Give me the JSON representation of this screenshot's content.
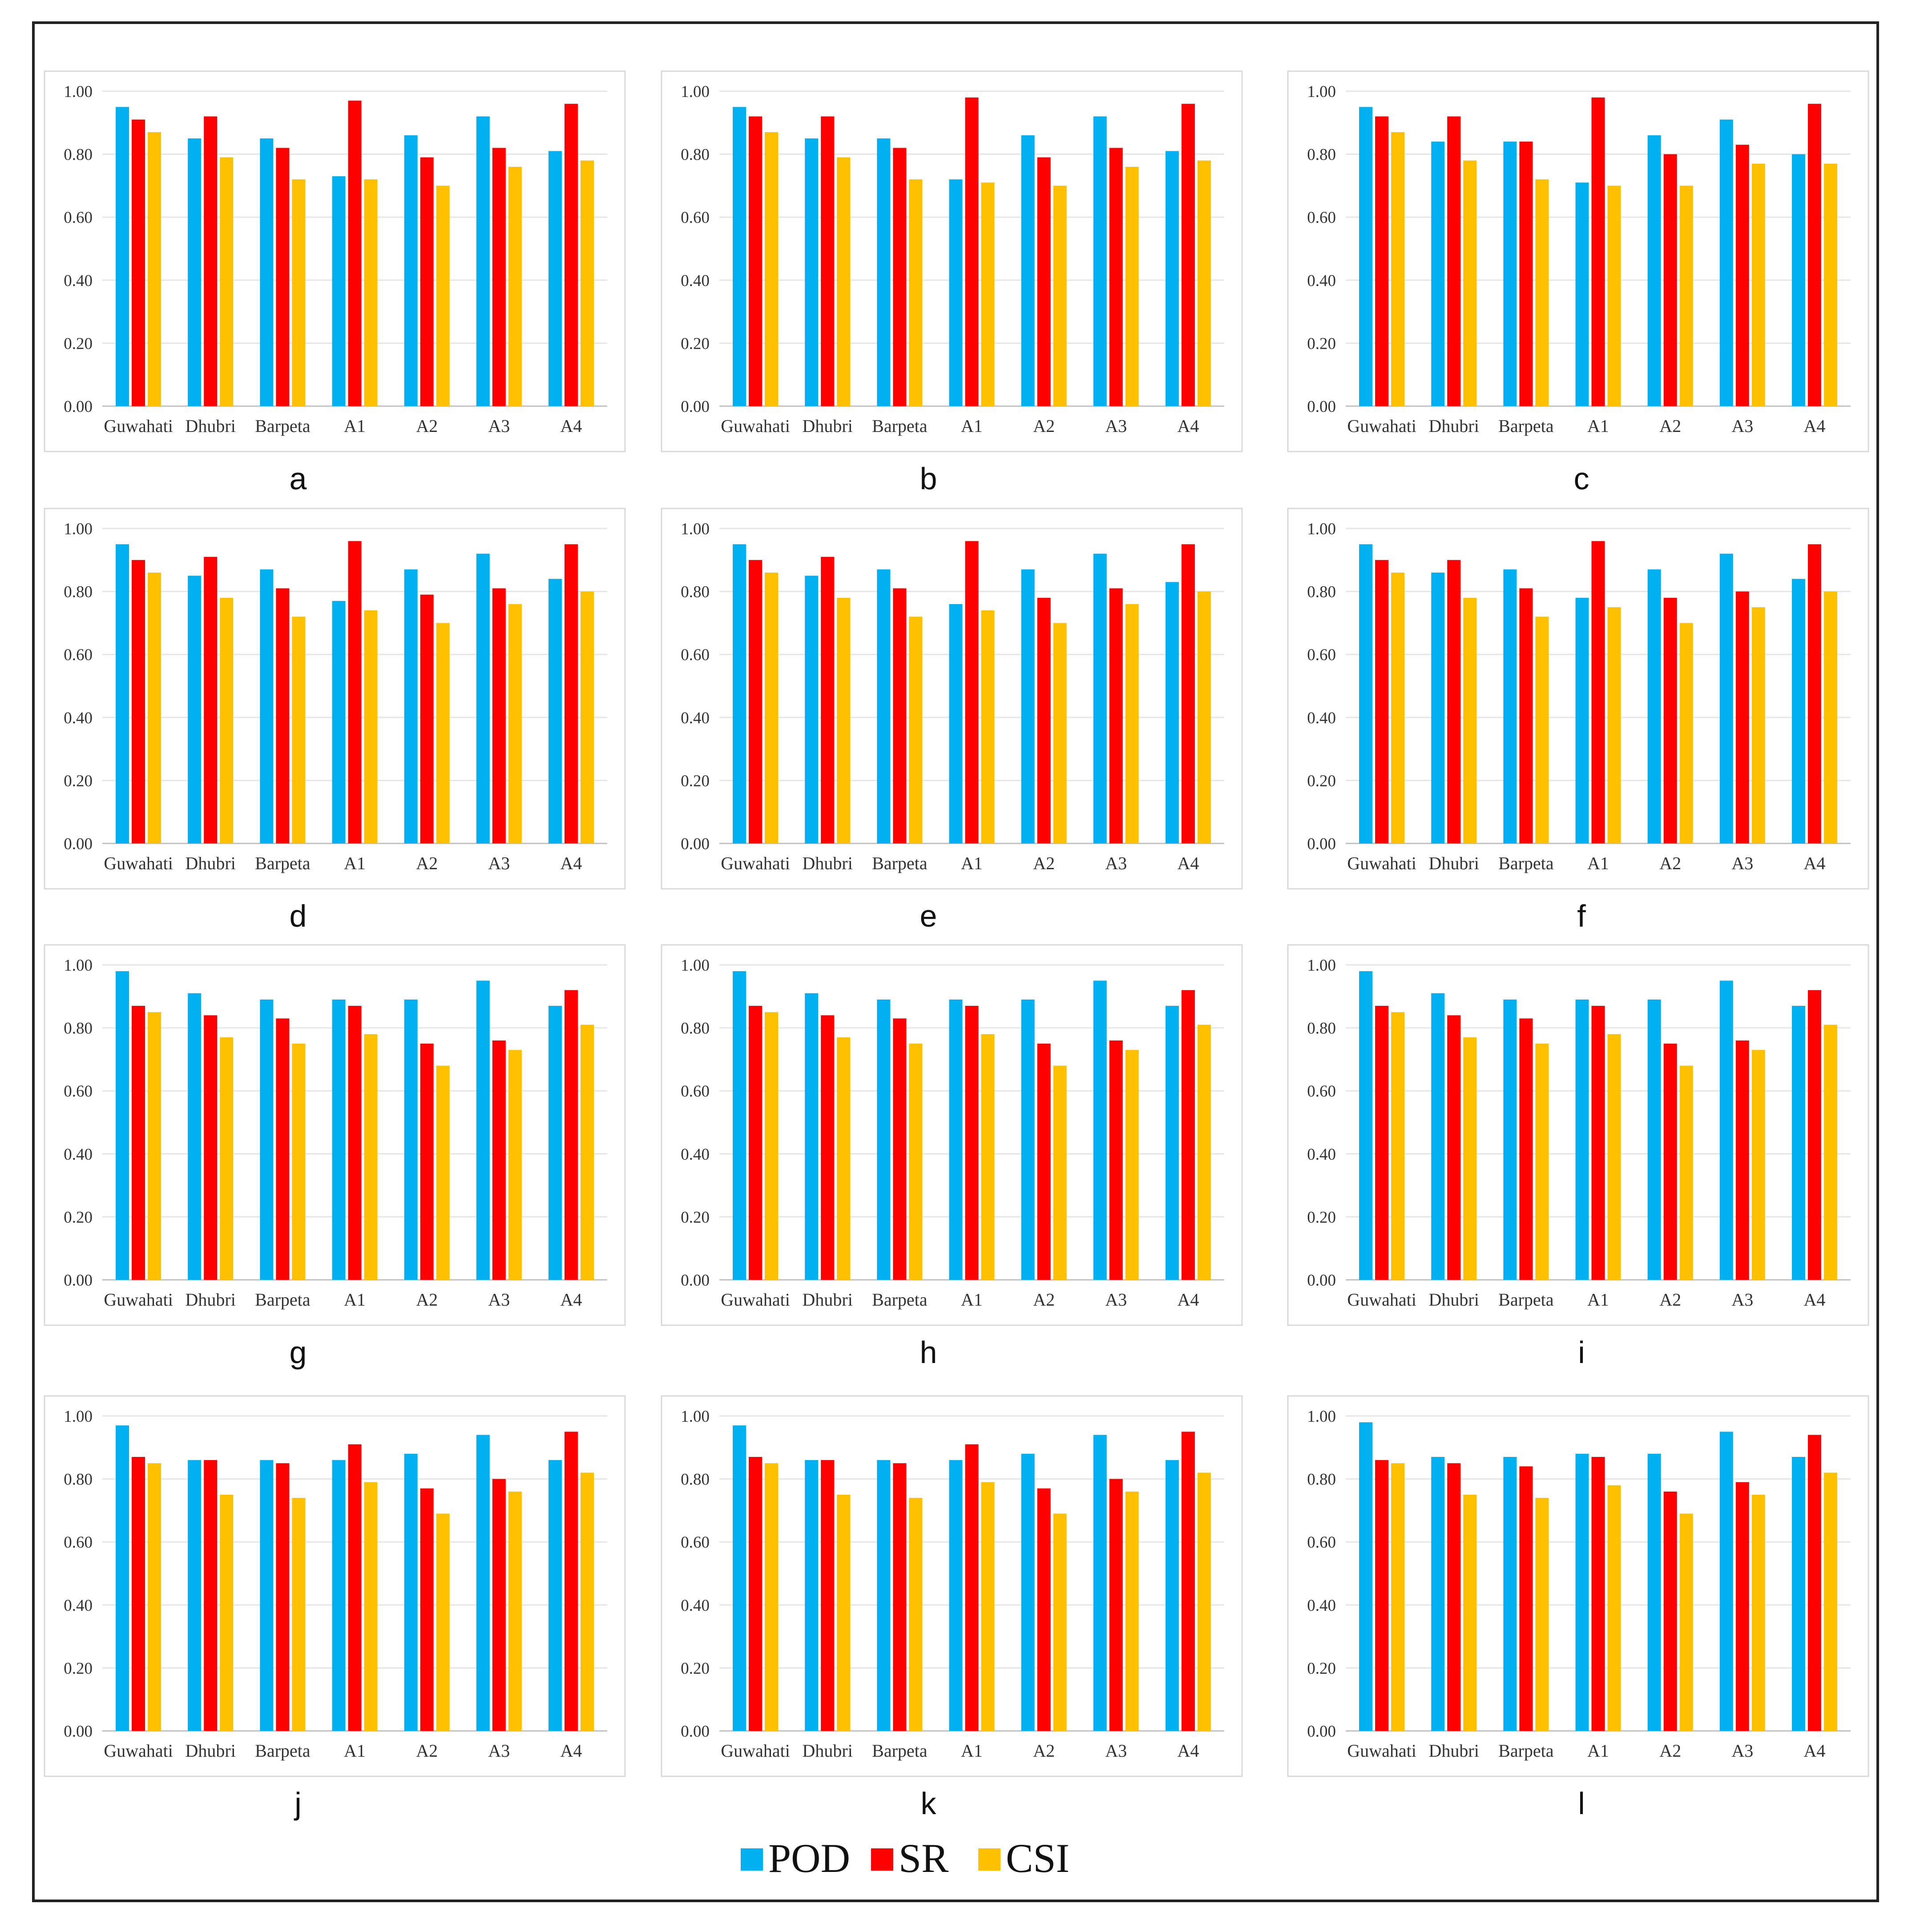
{
  "colors": {
    "POD": "#00b0f0",
    "SR": "#ff0000",
    "CSI": "#ffc000"
  },
  "legend": {
    "items": [
      {
        "name": "POD",
        "color": "#00b0f0"
      },
      {
        "name": "SR",
        "color": "#ff0000"
      },
      {
        "name": "CSI",
        "color": "#ffc000"
      }
    ]
  },
  "chart_data": [
    {
      "type": "bar",
      "panel_label": "a",
      "categories": [
        "Guwahati",
        "Dhubri",
        "Barpeta",
        "A1",
        "A2",
        "A3",
        "A4"
      ],
      "ylim": [
        0,
        1
      ],
      "yticks": [
        "0.00",
        "0.20",
        "0.40",
        "0.60",
        "0.80",
        "1.00"
      ],
      "grid": true,
      "series": [
        {
          "name": "POD",
          "values": [
            0.95,
            0.85,
            0.85,
            0.73,
            0.86,
            0.92,
            0.81
          ]
        },
        {
          "name": "SR",
          "values": [
            0.91,
            0.92,
            0.82,
            0.97,
            0.79,
            0.82,
            0.96
          ]
        },
        {
          "name": "CSI",
          "values": [
            0.87,
            0.79,
            0.72,
            0.72,
            0.7,
            0.76,
            0.78
          ]
        }
      ]
    },
    {
      "type": "bar",
      "panel_label": "b",
      "categories": [
        "Guwahati",
        "Dhubri",
        "Barpeta",
        "A1",
        "A2",
        "A3",
        "A4"
      ],
      "ylim": [
        0,
        1
      ],
      "yticks": [
        "0.00",
        "0.20",
        "0.40",
        "0.60",
        "0.80",
        "1.00"
      ],
      "grid": true,
      "series": [
        {
          "name": "POD",
          "values": [
            0.95,
            0.85,
            0.85,
            0.72,
            0.86,
            0.92,
            0.81
          ]
        },
        {
          "name": "SR",
          "values": [
            0.92,
            0.92,
            0.82,
            0.98,
            0.79,
            0.82,
            0.96
          ]
        },
        {
          "name": "CSI",
          "values": [
            0.87,
            0.79,
            0.72,
            0.71,
            0.7,
            0.76,
            0.78
          ]
        }
      ]
    },
    {
      "type": "bar",
      "panel_label": "c",
      "categories": [
        "Guwahati",
        "Dhubri",
        "Barpeta",
        "A1",
        "A2",
        "A3",
        "A4"
      ],
      "ylim": [
        0,
        1
      ],
      "yticks": [
        "0.00",
        "0.20",
        "0.40",
        "0.60",
        "0.80",
        "1.00"
      ],
      "grid": true,
      "series": [
        {
          "name": "POD",
          "values": [
            0.95,
            0.84,
            0.84,
            0.71,
            0.86,
            0.91,
            0.8
          ]
        },
        {
          "name": "SR",
          "values": [
            0.92,
            0.92,
            0.84,
            0.98,
            0.8,
            0.83,
            0.96
          ]
        },
        {
          "name": "CSI",
          "values": [
            0.87,
            0.78,
            0.72,
            0.7,
            0.7,
            0.77,
            0.77
          ]
        }
      ]
    },
    {
      "type": "bar",
      "panel_label": "d",
      "categories": [
        "Guwahati",
        "Dhubri",
        "Barpeta",
        "A1",
        "A2",
        "A3",
        "A4"
      ],
      "ylim": [
        0,
        1
      ],
      "yticks": [
        "0.00",
        "0.20",
        "0.40",
        "0.60",
        "0.80",
        "1.00"
      ],
      "grid": true,
      "series": [
        {
          "name": "POD",
          "values": [
            0.95,
            0.85,
            0.87,
            0.77,
            0.87,
            0.92,
            0.84
          ]
        },
        {
          "name": "SR",
          "values": [
            0.9,
            0.91,
            0.81,
            0.96,
            0.79,
            0.81,
            0.95
          ]
        },
        {
          "name": "CSI",
          "values": [
            0.86,
            0.78,
            0.72,
            0.74,
            0.7,
            0.76,
            0.8
          ]
        }
      ]
    },
    {
      "type": "bar",
      "panel_label": "e",
      "categories": [
        "Guwahati",
        "Dhubri",
        "Barpeta",
        "A1",
        "A2",
        "A3",
        "A4"
      ],
      "ylim": [
        0,
        1
      ],
      "yticks": [
        "0.00",
        "0.20",
        "0.40",
        "0.60",
        "0.80",
        "1.00"
      ],
      "grid": true,
      "series": [
        {
          "name": "POD",
          "values": [
            0.95,
            0.85,
            0.87,
            0.76,
            0.87,
            0.92,
            0.83
          ]
        },
        {
          "name": "SR",
          "values": [
            0.9,
            0.91,
            0.81,
            0.96,
            0.78,
            0.81,
            0.95
          ]
        },
        {
          "name": "CSI",
          "values": [
            0.86,
            0.78,
            0.72,
            0.74,
            0.7,
            0.76,
            0.8
          ]
        }
      ]
    },
    {
      "type": "bar",
      "panel_label": "f",
      "categories": [
        "Guwahati",
        "Dhubri",
        "Barpeta",
        "A1",
        "A2",
        "A3",
        "A4"
      ],
      "ylim": [
        0,
        1
      ],
      "yticks": [
        "0.00",
        "0.20",
        "0.40",
        "0.60",
        "0.80",
        "1.00"
      ],
      "grid": true,
      "series": [
        {
          "name": "POD",
          "values": [
            0.95,
            0.86,
            0.87,
            0.78,
            0.87,
            0.92,
            0.84
          ]
        },
        {
          "name": "SR",
          "values": [
            0.9,
            0.9,
            0.81,
            0.96,
            0.78,
            0.8,
            0.95
          ]
        },
        {
          "name": "CSI",
          "values": [
            0.86,
            0.78,
            0.72,
            0.75,
            0.7,
            0.75,
            0.8
          ]
        }
      ]
    },
    {
      "type": "bar",
      "panel_label": "g",
      "categories": [
        "Guwahati",
        "Dhubri",
        "Barpeta",
        "A1",
        "A2",
        "A3",
        "A4"
      ],
      "ylim": [
        0,
        1
      ],
      "yticks": [
        "0.00",
        "0.20",
        "0.40",
        "0.60",
        "0.80",
        "1.00"
      ],
      "grid": true,
      "series": [
        {
          "name": "POD",
          "values": [
            0.98,
            0.91,
            0.89,
            0.89,
            0.89,
            0.95,
            0.87
          ]
        },
        {
          "name": "SR",
          "values": [
            0.87,
            0.84,
            0.83,
            0.87,
            0.75,
            0.76,
            0.92
          ]
        },
        {
          "name": "CSI",
          "values": [
            0.85,
            0.77,
            0.75,
            0.78,
            0.68,
            0.73,
            0.81
          ]
        }
      ]
    },
    {
      "type": "bar",
      "panel_label": "h",
      "categories": [
        "Guwahati",
        "Dhubri",
        "Barpeta",
        "A1",
        "A2",
        "A3",
        "A4"
      ],
      "ylim": [
        0,
        1
      ],
      "yticks": [
        "0.00",
        "0.20",
        "0.40",
        "0.60",
        "0.80",
        "1.00"
      ],
      "grid": true,
      "series": [
        {
          "name": "POD",
          "values": [
            0.98,
            0.91,
            0.89,
            0.89,
            0.89,
            0.95,
            0.87
          ]
        },
        {
          "name": "SR",
          "values": [
            0.87,
            0.84,
            0.83,
            0.87,
            0.75,
            0.76,
            0.92
          ]
        },
        {
          "name": "CSI",
          "values": [
            0.85,
            0.77,
            0.75,
            0.78,
            0.68,
            0.73,
            0.81
          ]
        }
      ]
    },
    {
      "type": "bar",
      "panel_label": "i",
      "categories": [
        "Guwahati",
        "Dhubri",
        "Barpeta",
        "A1",
        "A2",
        "A3",
        "A4"
      ],
      "ylim": [
        0,
        1
      ],
      "yticks": [
        "0.00",
        "0.20",
        "0.40",
        "0.60",
        "0.80",
        "1.00"
      ],
      "grid": true,
      "series": [
        {
          "name": "POD",
          "values": [
            0.98,
            0.91,
            0.89,
            0.89,
            0.89,
            0.95,
            0.87
          ]
        },
        {
          "name": "SR",
          "values": [
            0.87,
            0.84,
            0.83,
            0.87,
            0.75,
            0.76,
            0.92
          ]
        },
        {
          "name": "CSI",
          "values": [
            0.85,
            0.77,
            0.75,
            0.78,
            0.68,
            0.73,
            0.81
          ]
        }
      ]
    },
    {
      "type": "bar",
      "panel_label": "j",
      "categories": [
        "Guwahati",
        "Dhubri",
        "Barpeta",
        "A1",
        "A2",
        "A3",
        "A4"
      ],
      "ylim": [
        0,
        1
      ],
      "yticks": [
        "0.00",
        "0.20",
        "0.40",
        "0.60",
        "0.80",
        "1.00"
      ],
      "grid": true,
      "series": [
        {
          "name": "POD",
          "values": [
            0.97,
            0.86,
            0.86,
            0.86,
            0.88,
            0.94,
            0.86
          ]
        },
        {
          "name": "SR",
          "values": [
            0.87,
            0.86,
            0.85,
            0.91,
            0.77,
            0.8,
            0.95
          ]
        },
        {
          "name": "CSI",
          "values": [
            0.85,
            0.75,
            0.74,
            0.79,
            0.69,
            0.76,
            0.82
          ]
        }
      ]
    },
    {
      "type": "bar",
      "panel_label": "k",
      "categories": [
        "Guwahati",
        "Dhubri",
        "Barpeta",
        "A1",
        "A2",
        "A3",
        "A4"
      ],
      "ylim": [
        0,
        1
      ],
      "yticks": [
        "0.00",
        "0.20",
        "0.40",
        "0.60",
        "0.80",
        "1.00"
      ],
      "grid": true,
      "series": [
        {
          "name": "POD",
          "values": [
            0.97,
            0.86,
            0.86,
            0.86,
            0.88,
            0.94,
            0.86
          ]
        },
        {
          "name": "SR",
          "values": [
            0.87,
            0.86,
            0.85,
            0.91,
            0.77,
            0.8,
            0.95
          ]
        },
        {
          "name": "CSI",
          "values": [
            0.85,
            0.75,
            0.74,
            0.79,
            0.69,
            0.76,
            0.82
          ]
        }
      ]
    },
    {
      "type": "bar",
      "panel_label": "l",
      "categories": [
        "Guwahati",
        "Dhubri",
        "Barpeta",
        "A1",
        "A2",
        "A3",
        "A4"
      ],
      "ylim": [
        0,
        1
      ],
      "yticks": [
        "0.00",
        "0.20",
        "0.40",
        "0.60",
        "0.80",
        "1.00"
      ],
      "grid": true,
      "series": [
        {
          "name": "POD",
          "values": [
            0.98,
            0.87,
            0.87,
            0.88,
            0.88,
            0.95,
            0.87
          ]
        },
        {
          "name": "SR",
          "values": [
            0.86,
            0.85,
            0.84,
            0.87,
            0.76,
            0.79,
            0.94
          ]
        },
        {
          "name": "CSI",
          "values": [
            0.85,
            0.75,
            0.74,
            0.78,
            0.69,
            0.75,
            0.82
          ]
        }
      ]
    }
  ]
}
